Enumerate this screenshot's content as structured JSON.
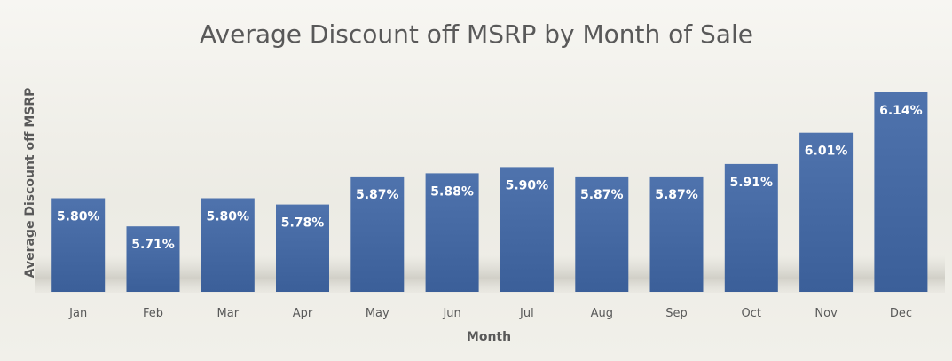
{
  "chart_data": {
    "type": "bar",
    "title": "Average Discount off MSRP by Month of Sale",
    "xlabel": "Month",
    "ylabel": "Average Discount off MSRP",
    "categories": [
      "Jan",
      "Feb",
      "Mar",
      "Apr",
      "May",
      "Jun",
      "Jul",
      "Aug",
      "Sep",
      "Oct",
      "Nov",
      "Dec"
    ],
    "values": [
      5.8,
      5.71,
      5.8,
      5.78,
      5.87,
      5.88,
      5.9,
      5.87,
      5.87,
      5.91,
      6.01,
      6.14
    ],
    "value_labels": [
      "5.80%",
      "5.71%",
      "5.80%",
      "5.78%",
      "5.87%",
      "5.88%",
      "5.90%",
      "5.87%",
      "5.87%",
      "5.91%",
      "6.01%",
      "6.14%"
    ],
    "ylim": [
      5.5,
      6.16
    ],
    "grid": false,
    "legend": "none",
    "colors": {
      "bar_top": "#4f73ad",
      "bar_bottom": "#3b5f99",
      "text": "#595959",
      "label": "#ffffff"
    }
  }
}
